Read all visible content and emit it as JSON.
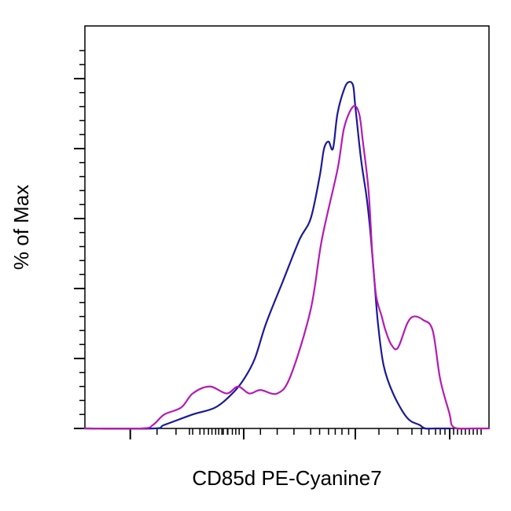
{
  "chart_data": {
    "type": "line",
    "xlabel": "CD85d PE-Cyanine7",
    "ylabel": "% of Max",
    "x_scale": "biexponential",
    "x_tick_labels": [],
    "y_tick_labels": [],
    "ylim": [
      0,
      100
    ],
    "grid": false,
    "legend": "none",
    "series": [
      {
        "color": "#1a1a96",
        "x": [
          -1.4,
          -0.8,
          -0.7,
          -0.45,
          -0.25,
          -0.1,
          0.0,
          0.1,
          0.2,
          0.35,
          0.5,
          0.6,
          0.68,
          0.72,
          0.76,
          0.8,
          0.84,
          0.9,
          0.94,
          0.98,
          1.0,
          1.06,
          1.12,
          1.16,
          1.2,
          1.24,
          1.3,
          1.4,
          1.55,
          1.68,
          1.74,
          1.84,
          2.0
        ],
        "y": [
          0,
          0,
          1,
          4,
          6,
          10,
          14,
          20,
          30,
          42,
          54,
          60,
          72,
          80,
          82,
          80,
          90,
          97,
          99,
          98,
          92,
          77,
          66,
          56,
          43,
          30,
          18,
          10,
          3,
          1,
          0,
          0,
          0
        ]
      },
      {
        "color": "#b51ab5",
        "x": [
          -1.4,
          -0.9,
          -0.8,
          -0.7,
          -0.55,
          -0.45,
          -0.3,
          -0.15,
          -0.05,
          0.05,
          0.15,
          0.3,
          0.42,
          0.6,
          0.7,
          0.84,
          0.9,
          0.98,
          1.04,
          1.08,
          1.14,
          1.18,
          1.22,
          1.28,
          1.32,
          1.38,
          1.45,
          1.55,
          1.62,
          1.72,
          1.82,
          1.9,
          2.0,
          2.05,
          2.2,
          2.6,
          3.0
        ],
        "y": [
          0,
          0,
          1,
          4,
          6,
          10,
          12,
          10,
          12,
          10,
          11,
          10,
          15,
          34,
          54,
          74,
          86,
          92,
          90,
          82,
          68,
          50,
          38,
          32,
          28,
          24,
          23,
          30,
          32,
          31,
          28,
          14,
          4,
          1,
          0,
          0,
          0
        ]
      }
    ]
  }
}
